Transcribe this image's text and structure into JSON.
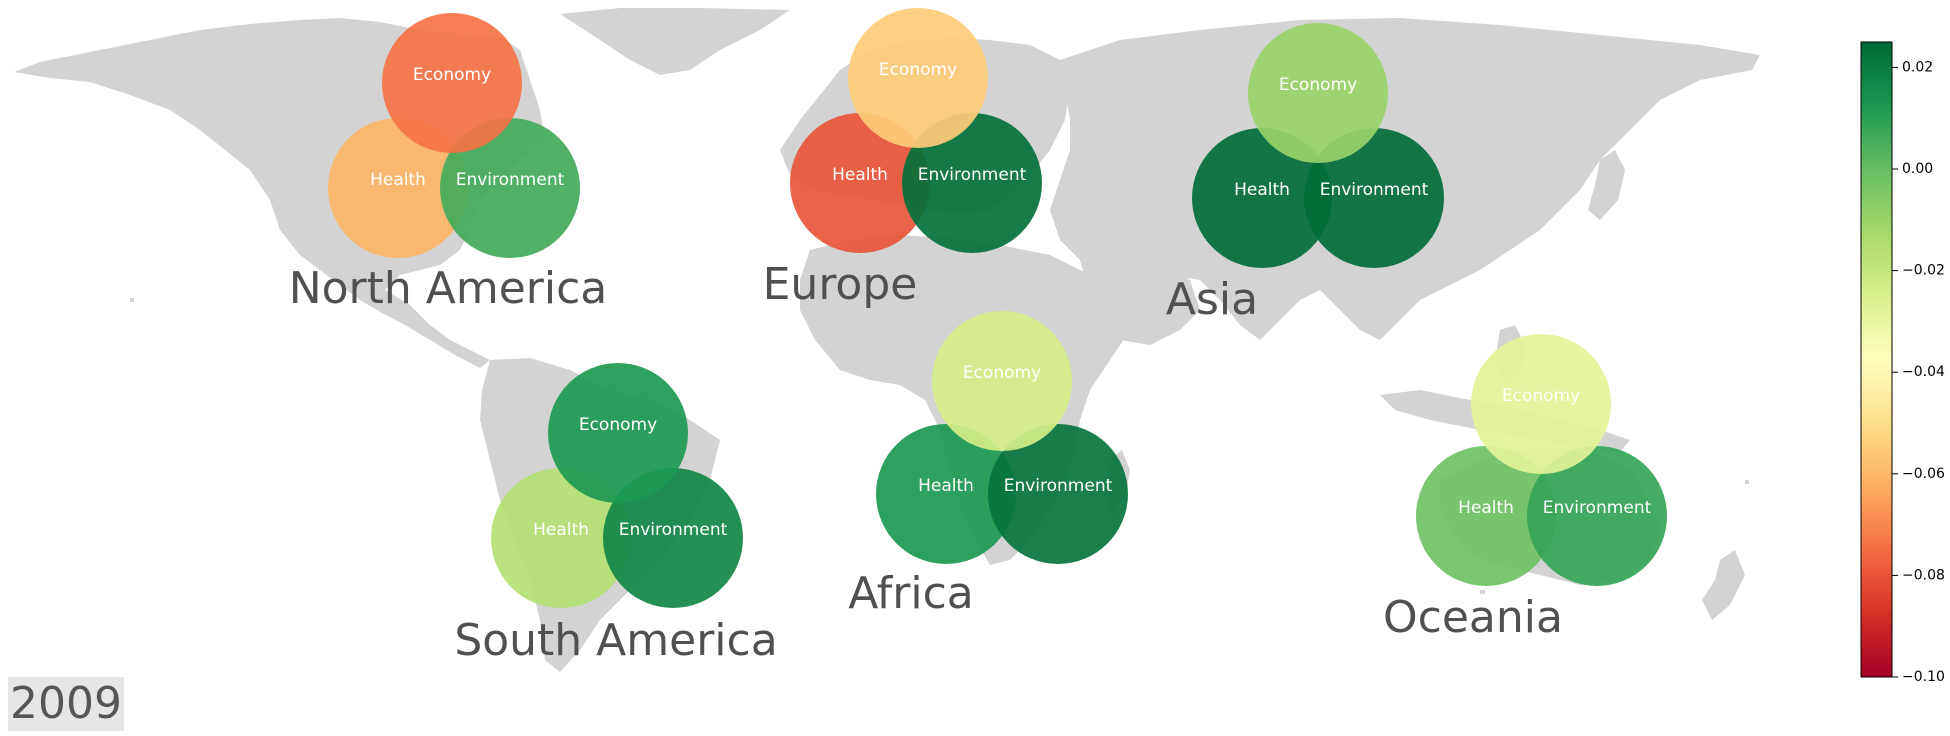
{
  "year": "2009",
  "colorbar": {
    "colormap": "RdYlGn",
    "min": -0.1,
    "max": 0.025,
    "ticks": [
      "0.02",
      "0.00",
      "−0.02",
      "−0.04",
      "−0.06",
      "−0.08",
      "−0.10"
    ],
    "tick_values": [
      0.02,
      0.0,
      -0.02,
      -0.04,
      -0.06,
      -0.08,
      -0.1
    ]
  },
  "chart_data": {
    "type": "map",
    "year": "2009",
    "color_scale": {
      "min": -0.1,
      "max": 0.025,
      "colormap": "RdYlGn"
    },
    "regions": [
      {
        "name": "North America",
        "values": {
          "Economy": -0.074,
          "Health": -0.061,
          "Environment": 0.006
        }
      },
      {
        "name": "Europe",
        "values": {
          "Economy": -0.055,
          "Health": -0.08,
          "Environment": 0.023
        }
      },
      {
        "name": "Asia",
        "values": {
          "Economy": -0.01,
          "Health": 0.024,
          "Environment": 0.024
        }
      },
      {
        "name": "South America",
        "values": {
          "Economy": 0.012,
          "Health": -0.016,
          "Environment": 0.017
        }
      },
      {
        "name": "Africa",
        "values": {
          "Economy": -0.024,
          "Health": 0.012,
          "Environment": 0.022
        }
      },
      {
        "name": "Oceania",
        "values": {
          "Economy": -0.028,
          "Health": -0.002,
          "Environment": 0.008
        }
      }
    ]
  }
}
